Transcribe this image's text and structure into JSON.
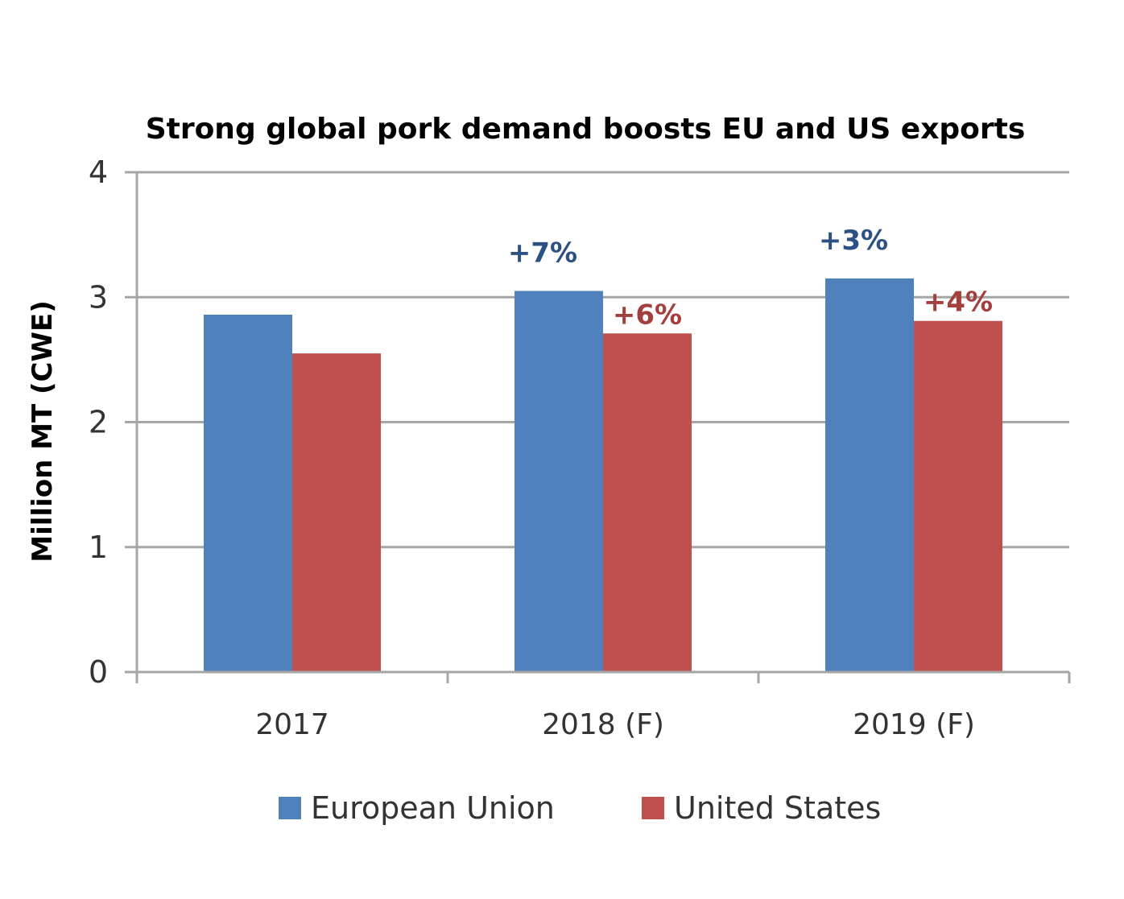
{
  "chart_data": {
    "type": "bar",
    "title": "Strong global pork demand boosts EU and US exports",
    "xlabel": "",
    "ylabel": "Million MT (CWE)",
    "ylim": [
      0,
      4
    ],
    "yticks": [
      "0",
      "1",
      "2",
      "3",
      "4"
    ],
    "grid": true,
    "legend_position": "bottom",
    "categories": [
      "2017",
      "2018 (F)",
      "2019 (F)"
    ],
    "series": [
      {
        "name": "European Union",
        "color": "#4F81BD",
        "values": [
          2.86,
          3.05,
          3.15
        ],
        "annotations": [
          "",
          "+7%",
          "+3%"
        ],
        "annotation_color": "#2E5184"
      },
      {
        "name": "United States",
        "color": "#C0504D",
        "values": [
          2.55,
          2.71,
          2.81
        ],
        "annotations": [
          "",
          "+6%",
          "+4%"
        ],
        "annotation_color": "#A3403D"
      }
    ]
  }
}
